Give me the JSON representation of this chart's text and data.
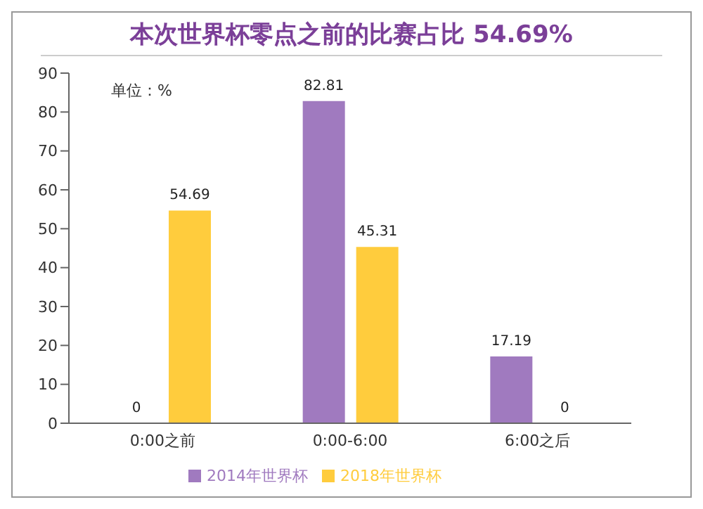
{
  "chart_data": {
    "type": "bar",
    "title": "本次世界杯零点之前的比赛占比 54.69%",
    "annotations": [
      "单位：%"
    ],
    "categories": [
      "0:00之前",
      "0:00-6:00",
      "6:00之后"
    ],
    "series": [
      {
        "name": "2014年世界杯",
        "color": "#a07abf",
        "values": [
          0,
          82.81,
          17.19
        ]
      },
      {
        "name": "2018年世界杯",
        "color": "#ffcc3d",
        "values": [
          54.69,
          45.31,
          0
        ]
      }
    ],
    "ylim": [
      0,
      90
    ],
    "yticks": [
      0,
      10,
      20,
      30,
      40,
      50,
      60,
      70,
      80,
      90
    ],
    "grid": false,
    "legend": "bottom",
    "data_labels": true
  }
}
